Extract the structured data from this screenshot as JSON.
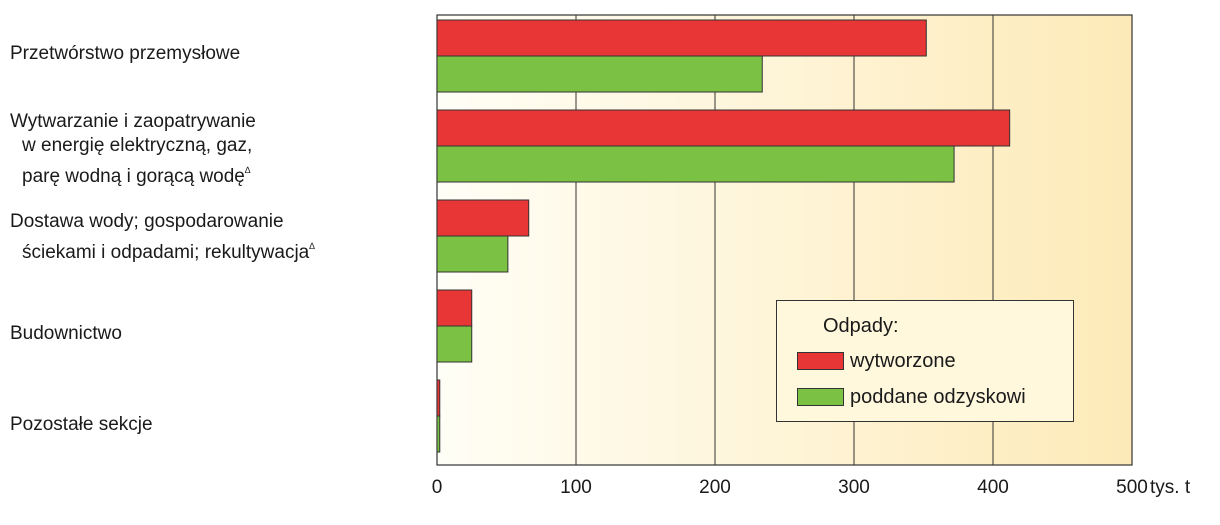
{
  "chart_data": {
    "type": "bar",
    "orientation": "horizontal",
    "categories": [
      [
        "Przetwórstwo przemysłowe"
      ],
      [
        "Wytwarzanie i zaopatrywanie",
        "w energię elektryczną, gaz,",
        "parę wodną i gorącą wodę"
      ],
      [
        "Dostawa wody; gospodarowanie",
        "ściekami i odpadami; rekultywacja"
      ],
      [
        "Budownictwo"
      ],
      [
        "Pozostałe sekcje"
      ]
    ],
    "category_markers": [
      "",
      "∆",
      "∆",
      "",
      ""
    ],
    "series": [
      {
        "name": "wytworzone",
        "color": "#e83535",
        "values": [
          352,
          412,
          66,
          25,
          2
        ]
      },
      {
        "name": "poddane odzyskowi",
        "color": "#7bc143",
        "values": [
          234,
          372,
          51,
          25,
          2
        ]
      }
    ],
    "xlim": [
      0,
      500
    ],
    "xticks": [
      "0",
      "100",
      "200",
      "300",
      "400",
      "500"
    ],
    "x_unit": "tys. t",
    "grid": true,
    "legend": {
      "title": "Odpady:",
      "placement": "inside-right"
    },
    "background_gradient": [
      "#fffef6",
      "#fdeab8"
    ]
  }
}
